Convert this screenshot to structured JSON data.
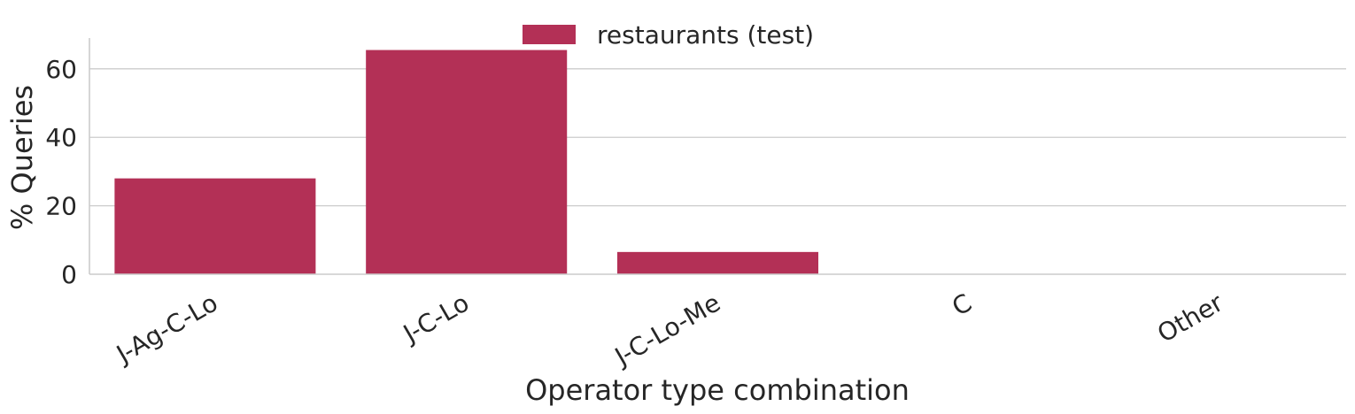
{
  "chart_data": {
    "type": "bar",
    "categories": [
      "J-Ag-C-Lo",
      "J-C-Lo",
      "J-C-Lo-Me",
      "C",
      "Other"
    ],
    "series": [
      {
        "name": "restaurants (test)",
        "values": [
          28,
          65.5,
          6.5,
          0,
          0
        ],
        "color": "#b33056"
      }
    ],
    "xlabel": "Operator type combination",
    "ylabel": "% Queries",
    "ylim": [
      0,
      69
    ],
    "yticks": [
      0,
      20,
      40,
      60
    ],
    "grid": "horizontal",
    "legend_position": "top-center",
    "x_tick_rotation": 30
  }
}
